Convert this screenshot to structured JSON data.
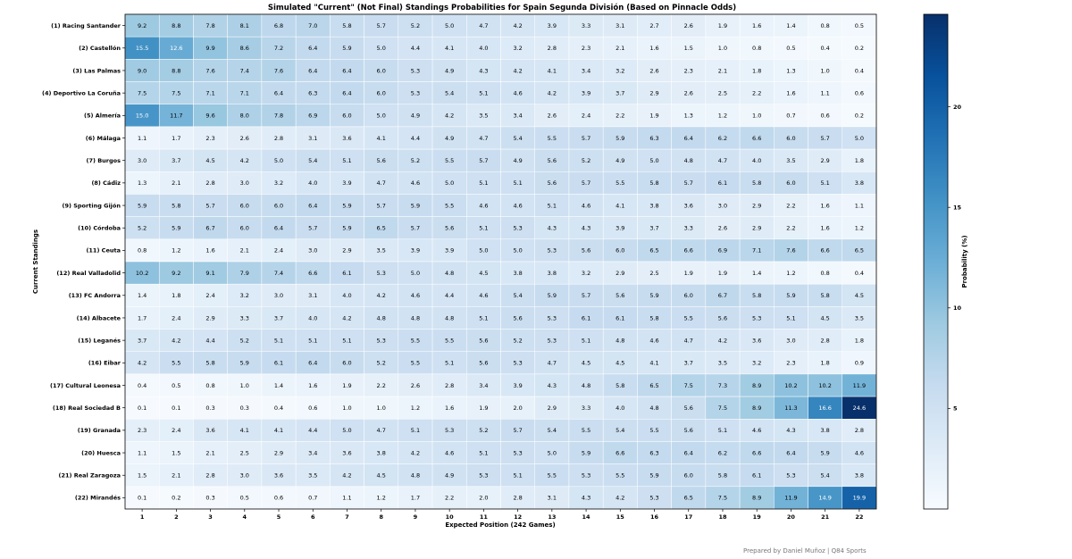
{
  "chart_data": {
    "type": "heatmap",
    "title": "Simulated \"Current\" (Not Final) Standings Probabilities for Spain Segunda División (Based on Pinnacle Odds)",
    "xlabel": "Expected Position (242 Games)",
    "ylabel": "Current Standings",
    "colorbar_label": "Probability (%)",
    "colorbar_ticks": [
      5,
      10,
      15,
      20
    ],
    "colorbar_range": [
      0,
      24.6
    ],
    "colormap": "Blues",
    "x_categories": [
      "1",
      "2",
      "3",
      "4",
      "5",
      "6",
      "7",
      "8",
      "9",
      "10",
      "11",
      "12",
      "13",
      "14",
      "15",
      "16",
      "17",
      "18",
      "19",
      "20",
      "21",
      "22"
    ],
    "y_categories": [
      "(1) Racing Santander",
      "(2) Castellón",
      "(3) Las Palmas",
      "(4) Deportivo La Coruña",
      "(5) Almería",
      "(6) Málaga",
      "(7) Burgos",
      "(8) Cádiz",
      "(9) Sporting Gijón",
      "(10) Córdoba",
      "(11) Ceuta",
      "(12) Real Valladolid",
      "(13) FC Andorra",
      "(14) Albacete",
      "(15) Leganés",
      "(16) Eibar",
      "(17) Cultural Leonesa",
      "(18) Real Sociedad B",
      "(19) Granada",
      "(20) Huesca",
      "(21) Real Zaragoza",
      "(22) Mirandés"
    ],
    "values": [
      [
        9.2,
        8.8,
        7.8,
        8.1,
        6.8,
        7.0,
        5.8,
        5.7,
        5.2,
        5.0,
        4.7,
        4.2,
        3.9,
        3.3,
        3.1,
        2.7,
        2.6,
        1.9,
        1.6,
        1.4,
        0.8,
        0.5
      ],
      [
        15.5,
        12.6,
        9.9,
        8.6,
        7.2,
        6.4,
        5.9,
        5.0,
        4.4,
        4.1,
        4.0,
        3.2,
        2.8,
        2.3,
        2.1,
        1.6,
        1.5,
        1.0,
        0.8,
        0.5,
        0.4,
        0.2
      ],
      [
        9.0,
        8.8,
        7.6,
        7.4,
        7.6,
        6.4,
        6.4,
        6.0,
        5.3,
        4.9,
        4.3,
        4.2,
        4.1,
        3.4,
        3.2,
        2.6,
        2.3,
        2.1,
        1.8,
        1.3,
        1.0,
        0.4
      ],
      [
        7.5,
        7.5,
        7.1,
        7.1,
        6.4,
        6.3,
        6.4,
        6.0,
        5.3,
        5.4,
        5.1,
        4.6,
        4.2,
        3.9,
        3.7,
        2.9,
        2.6,
        2.5,
        2.2,
        1.6,
        1.1,
        0.6
      ],
      [
        15.0,
        11.7,
        9.6,
        8.0,
        7.8,
        6.9,
        6.0,
        5.0,
        4.9,
        4.2,
        3.5,
        3.4,
        2.6,
        2.4,
        2.2,
        1.9,
        1.3,
        1.2,
        1.0,
        0.7,
        0.6,
        0.2
      ],
      [
        1.1,
        1.7,
        2.3,
        2.6,
        2.8,
        3.1,
        3.6,
        4.1,
        4.4,
        4.9,
        4.7,
        5.4,
        5.5,
        5.7,
        5.9,
        6.3,
        6.4,
        6.2,
        6.6,
        6.0,
        5.7,
        5.0
      ],
      [
        3.0,
        3.7,
        4.5,
        4.2,
        5.0,
        5.4,
        5.1,
        5.6,
        5.2,
        5.5,
        5.7,
        4.9,
        5.6,
        5.2,
        4.9,
        5.0,
        4.8,
        4.7,
        4.0,
        3.5,
        2.9,
        1.8
      ],
      [
        1.3,
        2.1,
        2.8,
        3.0,
        3.2,
        4.0,
        3.9,
        4.7,
        4.6,
        5.0,
        5.1,
        5.1,
        5.6,
        5.7,
        5.5,
        5.8,
        5.7,
        6.1,
        5.8,
        6.0,
        5.1,
        3.8
      ],
      [
        5.9,
        5.8,
        5.7,
        6.0,
        6.0,
        6.4,
        5.9,
        5.7,
        5.9,
        5.5,
        4.6,
        4.6,
        5.1,
        4.6,
        4.1,
        3.8,
        3.6,
        3.0,
        2.9,
        2.2,
        1.6,
        1.1
      ],
      [
        5.2,
        5.9,
        6.7,
        6.0,
        6.4,
        5.7,
        5.9,
        6.5,
        5.7,
        5.6,
        5.1,
        5.3,
        4.3,
        4.3,
        3.9,
        3.7,
        3.3,
        2.6,
        2.9,
        2.2,
        1.6,
        1.2
      ],
      [
        0.8,
        1.2,
        1.6,
        2.1,
        2.4,
        3.0,
        2.9,
        3.5,
        3.9,
        3.9,
        5.0,
        5.0,
        5.3,
        5.6,
        6.0,
        6.5,
        6.6,
        6.9,
        7.1,
        7.6,
        6.6,
        6.5
      ],
      [
        10.2,
        9.2,
        9.1,
        7.9,
        7.4,
        6.6,
        6.1,
        5.3,
        5.0,
        4.8,
        4.5,
        3.8,
        3.8,
        3.2,
        2.9,
        2.5,
        1.9,
        1.9,
        1.4,
        1.2,
        0.8,
        0.4
      ],
      [
        1.4,
        1.8,
        2.4,
        3.2,
        3.0,
        3.1,
        4.0,
        4.2,
        4.6,
        4.4,
        4.6,
        5.4,
        5.9,
        5.7,
        5.6,
        5.9,
        6.0,
        6.7,
        5.8,
        5.9,
        5.8,
        4.5
      ],
      [
        1.7,
        2.4,
        2.9,
        3.3,
        3.7,
        4.0,
        4.2,
        4.8,
        4.8,
        4.8,
        5.1,
        5.6,
        5.3,
        6.1,
        6.1,
        5.8,
        5.5,
        5.6,
        5.3,
        5.1,
        4.5,
        3.5
      ],
      [
        3.7,
        4.2,
        4.4,
        5.2,
        5.1,
        5.1,
        5.1,
        5.3,
        5.5,
        5.5,
        5.6,
        5.2,
        5.3,
        5.1,
        4.8,
        4.6,
        4.7,
        4.2,
        3.6,
        3.0,
        2.8,
        1.8
      ],
      [
        4.2,
        5.5,
        5.8,
        5.9,
        6.1,
        6.4,
        6.0,
        5.2,
        5.5,
        5.1,
        5.6,
        5.3,
        4.7,
        4.5,
        4.5,
        4.1,
        3.7,
        3.5,
        3.2,
        2.3,
        1.8,
        0.9
      ],
      [
        0.4,
        0.5,
        0.8,
        1.0,
        1.4,
        1.6,
        1.9,
        2.2,
        2.6,
        2.8,
        3.4,
        3.9,
        4.3,
        4.8,
        5.8,
        6.5,
        7.5,
        7.3,
        8.9,
        10.2,
        10.2,
        11.9
      ],
      [
        0.1,
        0.1,
        0.3,
        0.3,
        0.4,
        0.6,
        1.0,
        1.0,
        1.2,
        1.6,
        1.9,
        2.0,
        2.9,
        3.3,
        4.0,
        4.8,
        5.6,
        7.5,
        8.9,
        11.3,
        16.6,
        24.6
      ],
      [
        2.3,
        2.4,
        3.6,
        4.1,
        4.1,
        4.4,
        5.0,
        4.7,
        5.1,
        5.3,
        5.2,
        5.7,
        5.4,
        5.5,
        5.4,
        5.5,
        5.6,
        5.1,
        4.6,
        4.3,
        3.8,
        2.8
      ],
      [
        1.1,
        1.5,
        2.1,
        2.5,
        2.9,
        3.4,
        3.6,
        3.8,
        4.2,
        4.6,
        5.1,
        5.3,
        5.0,
        5.9,
        6.6,
        6.3,
        6.4,
        6.2,
        6.6,
        6.4,
        5.9,
        4.6
      ],
      [
        1.5,
        2.1,
        2.8,
        3.0,
        3.6,
        3.5,
        4.2,
        4.5,
        4.8,
        4.9,
        5.3,
        5.1,
        5.5,
        5.3,
        5.5,
        5.9,
        6.0,
        5.8,
        6.1,
        5.3,
        5.4,
        3.8
      ],
      [
        0.1,
        0.2,
        0.3,
        0.5,
        0.6,
        0.7,
        1.1,
        1.2,
        1.7,
        2.2,
        2.0,
        2.8,
        3.1,
        4.3,
        4.2,
        5.3,
        6.5,
        7.5,
        8.9,
        11.9,
        14.9,
        19.9
      ]
    ]
  },
  "footer": "Prepared by Daniel Muñoz | Q84 Sports"
}
